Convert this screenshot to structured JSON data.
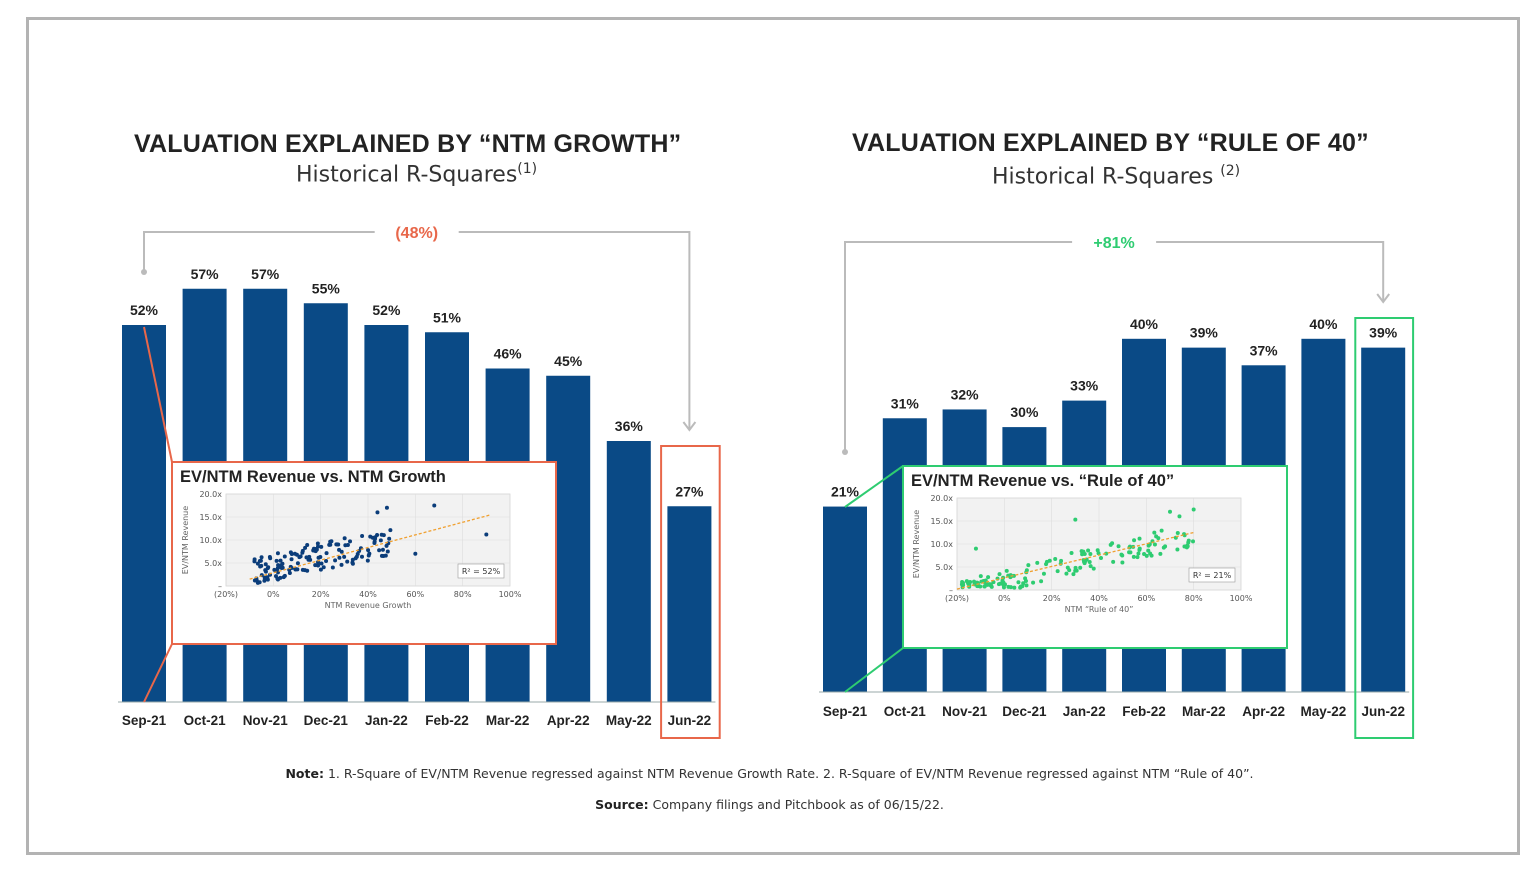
{
  "charts_meta": {
    "left": {
      "title": "VALUATION EXPLAINED BY “NTM GROWTH”",
      "subtitle": "Historical R-Squares",
      "footnote_mark": "(1)",
      "change_label": "(48%)",
      "change_color": "#e8674a",
      "inset": {
        "title": "EV/NTM Revenue vs. NTM Growth",
        "ylabel": "EV/NTM Revenue",
        "xlabel": "NTM Revenue Growth",
        "yticks": [
          "20.0x",
          "15.0x",
          "10.0x",
          "5.0x",
          "–"
        ],
        "xticks": [
          "(20%)",
          "0%",
          "20%",
          "40%",
          "60%",
          "80%",
          "100%"
        ],
        "r2": "R² = 52%",
        "point_color": "#0b3d7a"
      }
    },
    "right": {
      "title": "VALUATION EXPLAINED BY “RULE OF 40”",
      "subtitle": "Historical R-Squares",
      "footnote_mark": "(2)",
      "change_label": "+81%",
      "change_color": "#2ecc71",
      "inset": {
        "title": "EV/NTM Revenue vs. “Rule of 40”",
        "ylabel": "EV/NTM Revenue",
        "xlabel": "NTM “Rule of 40”",
        "yticks": [
          "20.0x",
          "15.0x",
          "10.0x",
          "5.0x",
          "–"
        ],
        "xticks": [
          "(20%)",
          "0%",
          "20%",
          "40%",
          "60%",
          "80%",
          "100%"
        ],
        "r2": "R² = 21%",
        "point_color": "#2ecc71"
      }
    },
    "bar_color": "#0a4a86"
  },
  "chart_data": [
    {
      "type": "bar",
      "title": "VALUATION EXPLAINED BY “NTM GROWTH”",
      "subtitle": "Historical R-Squares",
      "categories": [
        "Sep-21",
        "Oct-21",
        "Nov-21",
        "Dec-21",
        "Jan-22",
        "Feb-22",
        "Mar-22",
        "Apr-22",
        "May-22",
        "Jun-22"
      ],
      "values": [
        52,
        57,
        57,
        55,
        52,
        51,
        46,
        45,
        36,
        27
      ],
      "value_labels": [
        "52%",
        "57%",
        "57%",
        "55%",
        "52%",
        "51%",
        "46%",
        "45%",
        "36%",
        "27%"
      ],
      "highlight": "Jun-22",
      "annotation": "(48%)"
    },
    {
      "type": "bar",
      "title": "VALUATION EXPLAINED BY “RULE OF 40”",
      "subtitle": "Historical R-Squares",
      "categories": [
        "Sep-21",
        "Oct-21",
        "Nov-21",
        "Dec-21",
        "Jan-22",
        "Feb-22",
        "Mar-22",
        "Apr-22",
        "May-22",
        "Jun-22"
      ],
      "values": [
        21,
        31,
        32,
        30,
        33,
        40,
        39,
        37,
        40,
        39
      ],
      "value_labels": [
        "21%",
        "31%",
        "32%",
        "30%",
        "33%",
        "40%",
        "39%",
        "37%",
        "40%",
        "39%"
      ],
      "highlight": "Jun-22",
      "annotation": "+81%"
    }
  ],
  "notes": {
    "note_label": "Note:",
    "note_text": "1. R-Square of EV/NTM Revenue regressed against NTM Revenue Growth Rate. 2. R-Square of EV/NTM Revenue regressed against NTM “Rule of 40”.",
    "source_label": "Source:",
    "source_text": "Company filings and Pitchbook as of 06/15/22."
  }
}
